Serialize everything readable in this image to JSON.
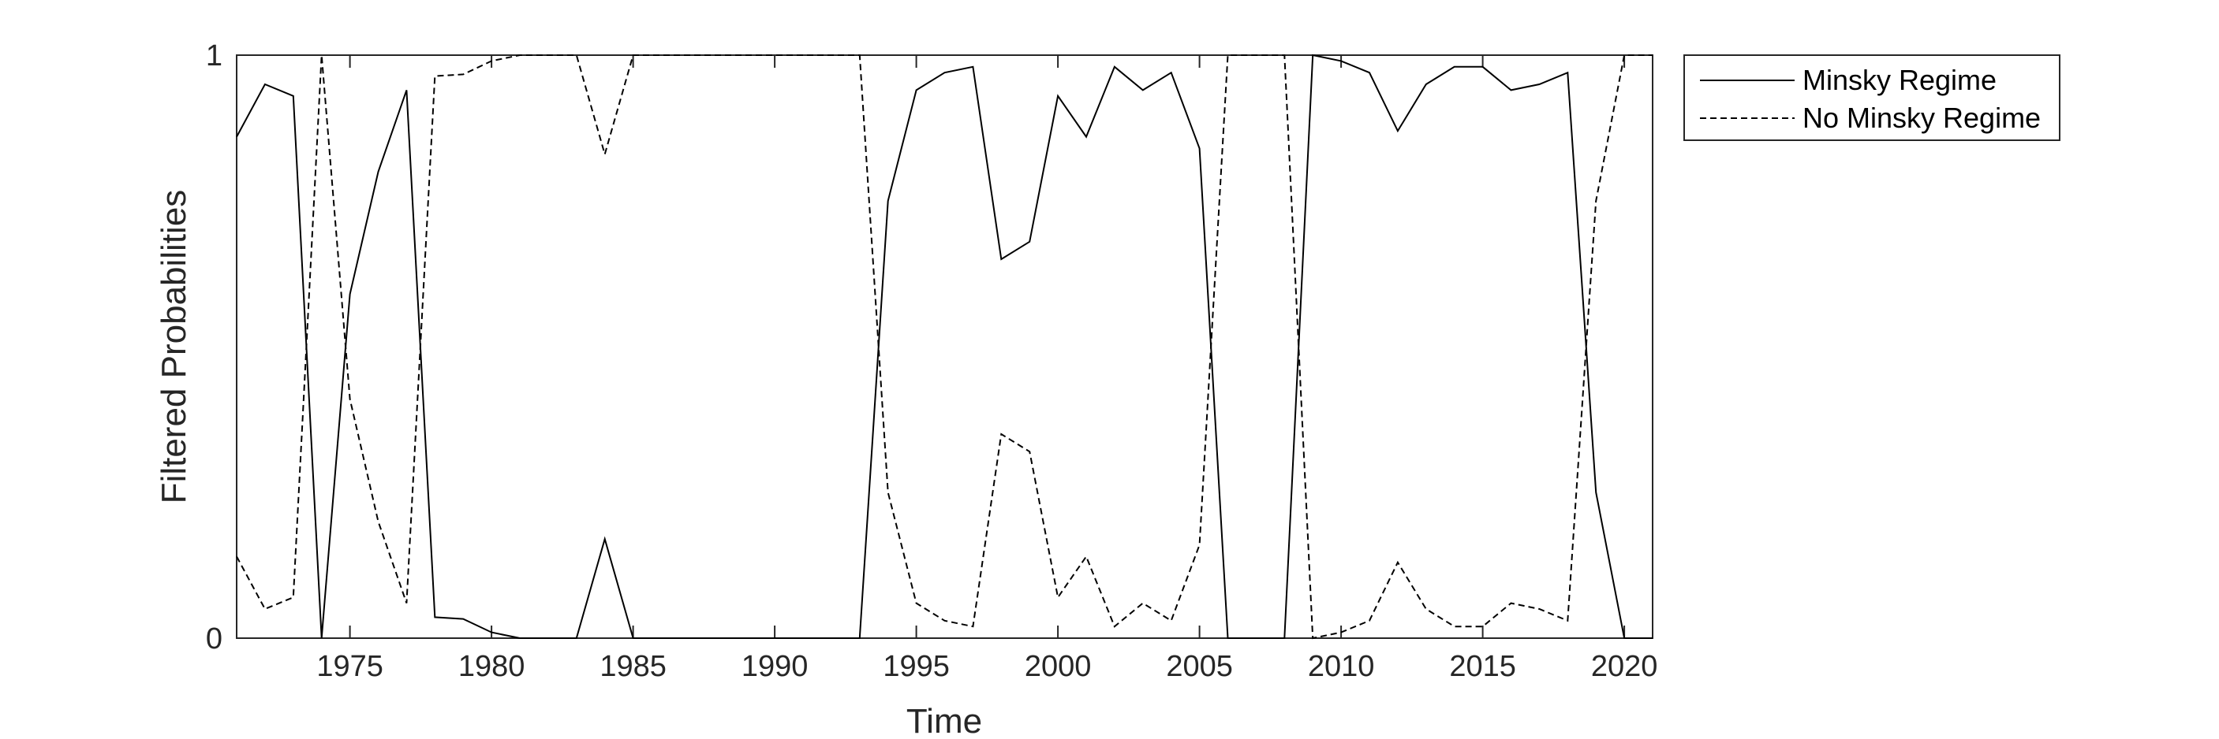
{
  "chart_data": {
    "type": "line",
    "xlabel": "Time",
    "ylabel": "Filtered Probabilities",
    "xlim": [
      1971,
      2021
    ],
    "ylim": [
      0,
      1
    ],
    "xticks": [
      1975,
      1980,
      1985,
      1990,
      1995,
      2000,
      2005,
      2010,
      2015,
      2020
    ],
    "yticks": [
      0,
      1
    ],
    "grid": false,
    "legend_position": "outside-top-right",
    "x": [
      1971,
      1972,
      1973,
      1974,
      1975,
      1976,
      1977,
      1978,
      1979,
      1980,
      1981,
      1982,
      1983,
      1984,
      1985,
      1986,
      1987,
      1988,
      1989,
      1990,
      1991,
      1992,
      1993,
      1994,
      1995,
      1996,
      1997,
      1998,
      1999,
      2000,
      2001,
      2002,
      2003,
      2004,
      2005,
      2006,
      2007,
      2008,
      2009,
      2010,
      2011,
      2012,
      2013,
      2014,
      2015,
      2016,
      2017,
      2018,
      2019,
      2020,
      2021
    ],
    "series": [
      {
        "name": "Minsky Regime",
        "style": "solid",
        "color": "#000000",
        "values": [
          0.86,
          0.95,
          0.93,
          0.0,
          0.59,
          0.8,
          0.94,
          0.036,
          0.033,
          0.01,
          0.0,
          0.0,
          0.0,
          0.17,
          0.0,
          0.0,
          0.0,
          0.0,
          0.0,
          0.0,
          0.0,
          0.0,
          0.0,
          0.75,
          0.94,
          0.97,
          0.98,
          0.65,
          0.68,
          0.93,
          0.86,
          0.98,
          0.94,
          0.97,
          0.84,
          0.0,
          0.0,
          0.0,
          1.0,
          0.99,
          0.97,
          0.87,
          0.95,
          0.98,
          0.98,
          0.94,
          0.95,
          0.97,
          0.25,
          0.0,
          0.0
        ]
      },
      {
        "name": "No Minsky Regime",
        "style": "dashed",
        "color": "#000000",
        "values": [
          0.14,
          0.05,
          0.07,
          1.0,
          0.41,
          0.2,
          0.06,
          0.964,
          0.967,
          0.99,
          1.0,
          1.0,
          1.0,
          0.83,
          1.0,
          1.0,
          1.0,
          1.0,
          1.0,
          1.0,
          1.0,
          1.0,
          1.0,
          0.25,
          0.06,
          0.03,
          0.02,
          0.35,
          0.32,
          0.07,
          0.14,
          0.02,
          0.06,
          0.03,
          0.16,
          1.0,
          1.0,
          1.0,
          0.0,
          0.01,
          0.03,
          0.13,
          0.05,
          0.02,
          0.02,
          0.06,
          0.05,
          0.03,
          0.75,
          1.0,
          1.0
        ]
      }
    ]
  }
}
